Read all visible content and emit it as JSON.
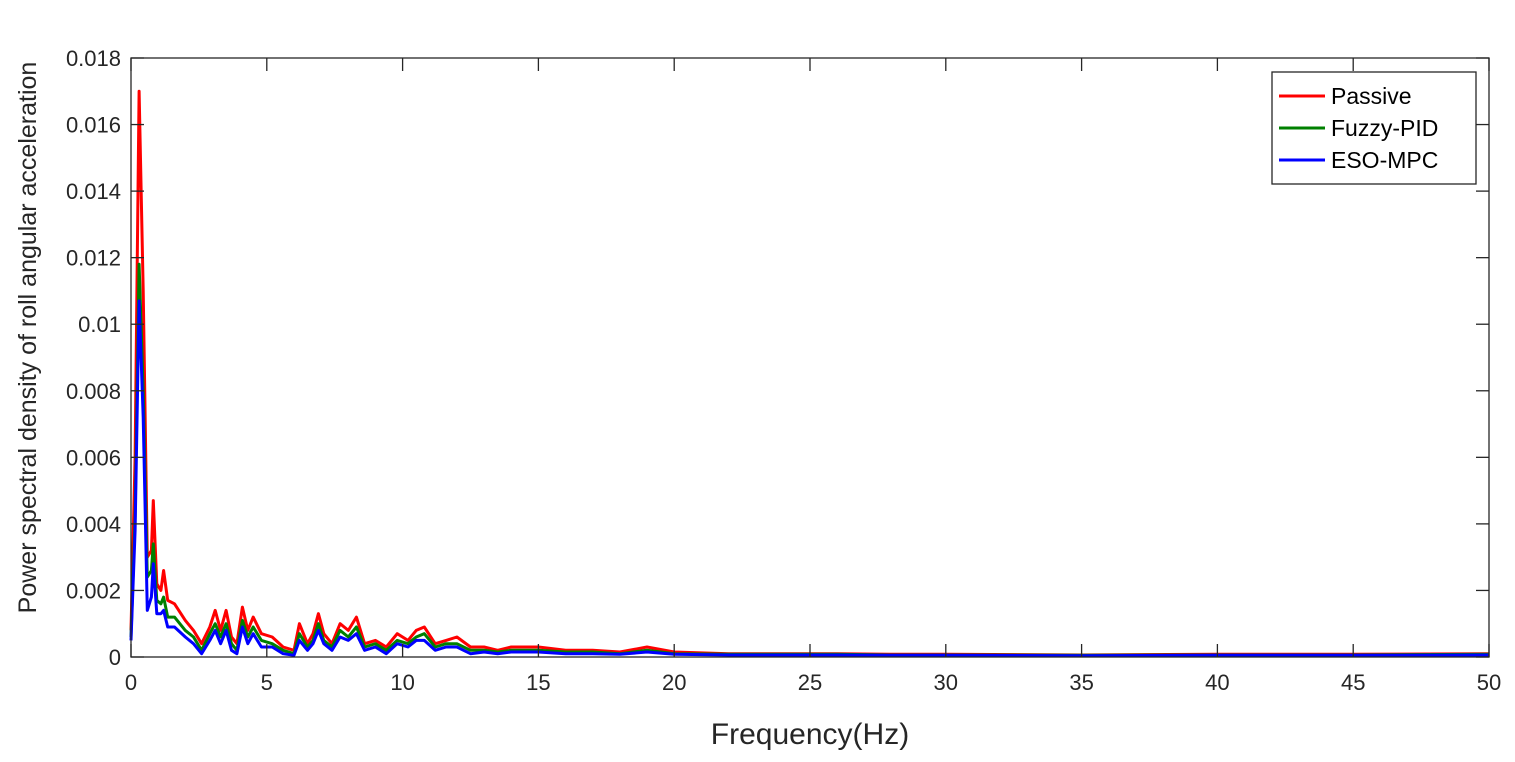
{
  "chart_data": {
    "type": "line",
    "title": "",
    "xlabel": "Frequency(Hz)",
    "ylabel": "Power spectral density of roll angular acceleration",
    "xlim": [
      0,
      50
    ],
    "ylim": [
      0,
      0.018
    ],
    "x_ticks": [
      "0",
      "5",
      "10",
      "15",
      "20",
      "25",
      "30",
      "35",
      "40",
      "45",
      "50"
    ],
    "y_ticks": [
      "0",
      "0.002",
      "0.004",
      "0.006",
      "0.008",
      "0.01",
      "0.012",
      "0.014",
      "0.016",
      "0.018"
    ],
    "grid": false,
    "legend_position": "top-right",
    "series": [
      {
        "name": "Passive",
        "color": "#ff0000",
        "points": [
          [
            0,
            0.0008
          ],
          [
            0.15,
            0.006
          ],
          [
            0.3,
            0.017
          ],
          [
            0.45,
            0.011
          ],
          [
            0.6,
            0.003
          ],
          [
            0.75,
            0.0032
          ],
          [
            0.82,
            0.0047
          ],
          [
            0.95,
            0.0022
          ],
          [
            1.1,
            0.002
          ],
          [
            1.2,
            0.0026
          ],
          [
            1.35,
            0.0017
          ],
          [
            1.6,
            0.0016
          ],
          [
            2,
            0.0011
          ],
          [
            2.3,
            0.0008
          ],
          [
            2.6,
            0.0004
          ],
          [
            2.9,
            0.0009
          ],
          [
            3.1,
            0.0014
          ],
          [
            3.3,
            0.0008
          ],
          [
            3.5,
            0.0014
          ],
          [
            3.7,
            0.0006
          ],
          [
            3.9,
            0.0004
          ],
          [
            4.1,
            0.0015
          ],
          [
            4.3,
            0.0008
          ],
          [
            4.5,
            0.0012
          ],
          [
            4.8,
            0.0007
          ],
          [
            5.2,
            0.0006
          ],
          [
            5.6,
            0.0003
          ],
          [
            6,
            0.0002
          ],
          [
            6.2,
            0.001
          ],
          [
            6.5,
            0.0004
          ],
          [
            6.7,
            0.0007
          ],
          [
            6.9,
            0.0013
          ],
          [
            7.1,
            0.0007
          ],
          [
            7.4,
            0.0004
          ],
          [
            7.7,
            0.001
          ],
          [
            8,
            0.0008
          ],
          [
            8.3,
            0.0012
          ],
          [
            8.6,
            0.0004
          ],
          [
            9,
            0.0005
          ],
          [
            9.4,
            0.0003
          ],
          [
            9.8,
            0.0007
          ],
          [
            10.2,
            0.0005
          ],
          [
            10.5,
            0.0008
          ],
          [
            10.8,
            0.0009
          ],
          [
            11.2,
            0.0004
          ],
          [
            11.6,
            0.0005
          ],
          [
            12,
            0.0006
          ],
          [
            12.5,
            0.0003
          ],
          [
            13,
            0.0003
          ],
          [
            13.5,
            0.0002
          ],
          [
            14,
            0.0003
          ],
          [
            14.5,
            0.0003
          ],
          [
            15,
            0.0003
          ],
          [
            16,
            0.0002
          ],
          [
            17,
            0.0002
          ],
          [
            18,
            0.00015
          ],
          [
            19,
            0.0003
          ],
          [
            20,
            0.00015
          ],
          [
            22,
            0.0001
          ],
          [
            24,
            0.0001
          ],
          [
            26,
            0.0001
          ],
          [
            28,
            8e-05
          ],
          [
            30,
            8e-05
          ],
          [
            35,
            6e-05
          ],
          [
            40,
            8e-05
          ],
          [
            45,
            8e-05
          ],
          [
            50,
            0.0001
          ]
        ]
      },
      {
        "name": "Fuzzy-PID",
        "color": "#008000",
        "points": [
          [
            0,
            0.0006
          ],
          [
            0.15,
            0.0042
          ],
          [
            0.3,
            0.0118
          ],
          [
            0.45,
            0.008
          ],
          [
            0.6,
            0.0024
          ],
          [
            0.75,
            0.0026
          ],
          [
            0.82,
            0.0034
          ],
          [
            0.95,
            0.0017
          ],
          [
            1.1,
            0.0016
          ],
          [
            1.2,
            0.0018
          ],
          [
            1.35,
            0.0012
          ],
          [
            1.6,
            0.0012
          ],
          [
            2,
            0.0008
          ],
          [
            2.3,
            0.0006
          ],
          [
            2.6,
            0.0002
          ],
          [
            2.9,
            0.0007
          ],
          [
            3.1,
            0.001
          ],
          [
            3.3,
            0.0006
          ],
          [
            3.5,
            0.001
          ],
          [
            3.7,
            0.0004
          ],
          [
            3.9,
            0.0002
          ],
          [
            4.1,
            0.0011
          ],
          [
            4.3,
            0.0006
          ],
          [
            4.5,
            0.0009
          ],
          [
            4.8,
            0.0005
          ],
          [
            5.2,
            0.0004
          ],
          [
            5.6,
            0.0002
          ],
          [
            6,
            0.0001
          ],
          [
            6.2,
            0.0007
          ],
          [
            6.5,
            0.0003
          ],
          [
            6.7,
            0.0005
          ],
          [
            6.9,
            0.001
          ],
          [
            7.1,
            0.0005
          ],
          [
            7.4,
            0.0003
          ],
          [
            7.7,
            0.0008
          ],
          [
            8,
            0.0006
          ],
          [
            8.3,
            0.0009
          ],
          [
            8.6,
            0.0003
          ],
          [
            9,
            0.0004
          ],
          [
            9.4,
            0.0002
          ],
          [
            9.8,
            0.0005
          ],
          [
            10.2,
            0.0004
          ],
          [
            10.5,
            0.0006
          ],
          [
            10.8,
            0.0007
          ],
          [
            11.2,
            0.0003
          ],
          [
            11.6,
            0.0004
          ],
          [
            12,
            0.0004
          ],
          [
            12.5,
            0.0002
          ],
          [
            13,
            0.0002
          ],
          [
            13.5,
            0.00015
          ],
          [
            14,
            0.0002
          ],
          [
            14.5,
            0.0002
          ],
          [
            15,
            0.0002
          ],
          [
            16,
            0.00015
          ],
          [
            17,
            0.00015
          ],
          [
            18,
            0.0001
          ],
          [
            19,
            0.0002
          ],
          [
            20,
            0.0001
          ],
          [
            22,
            8e-05
          ],
          [
            24,
            8e-05
          ],
          [
            26,
            8e-05
          ],
          [
            28,
            6e-05
          ],
          [
            30,
            6e-05
          ],
          [
            35,
            5e-05
          ],
          [
            40,
            6e-05
          ],
          [
            45,
            6e-05
          ],
          [
            50,
            8e-05
          ]
        ]
      },
      {
        "name": "ESO-MPC",
        "color": "#0000ff",
        "points": [
          [
            0,
            0.0005
          ],
          [
            0.15,
            0.0038
          ],
          [
            0.3,
            0.0107
          ],
          [
            0.45,
            0.0072
          ],
          [
            0.6,
            0.0014
          ],
          [
            0.75,
            0.0018
          ],
          [
            0.82,
            0.0028
          ],
          [
            0.95,
            0.0013
          ],
          [
            1.1,
            0.0013
          ],
          [
            1.2,
            0.0014
          ],
          [
            1.35,
            0.0009
          ],
          [
            1.6,
            0.0009
          ],
          [
            2,
            0.0006
          ],
          [
            2.3,
            0.0004
          ],
          [
            2.6,
            0.0001
          ],
          [
            2.9,
            0.0005
          ],
          [
            3.1,
            0.0008
          ],
          [
            3.3,
            0.0004
          ],
          [
            3.5,
            0.0008
          ],
          [
            3.7,
            0.0002
          ],
          [
            3.9,
            0.0001
          ],
          [
            4.1,
            0.0009
          ],
          [
            4.3,
            0.0004
          ],
          [
            4.5,
            0.0007
          ],
          [
            4.8,
            0.0003
          ],
          [
            5.2,
            0.0003
          ],
          [
            5.6,
            0.0001
          ],
          [
            6,
            5e-05
          ],
          [
            6.2,
            0.0005
          ],
          [
            6.5,
            0.0002
          ],
          [
            6.7,
            0.0004
          ],
          [
            6.9,
            0.0008
          ],
          [
            7.1,
            0.0004
          ],
          [
            7.4,
            0.0002
          ],
          [
            7.7,
            0.0006
          ],
          [
            8,
            0.0005
          ],
          [
            8.3,
            0.0007
          ],
          [
            8.6,
            0.0002
          ],
          [
            9,
            0.0003
          ],
          [
            9.4,
            0.0001
          ],
          [
            9.8,
            0.0004
          ],
          [
            10.2,
            0.0003
          ],
          [
            10.5,
            0.0005
          ],
          [
            10.8,
            0.0005
          ],
          [
            11.2,
            0.0002
          ],
          [
            11.6,
            0.0003
          ],
          [
            12,
            0.0003
          ],
          [
            12.5,
            0.0001
          ],
          [
            13,
            0.00015
          ],
          [
            13.5,
            0.0001
          ],
          [
            14,
            0.00015
          ],
          [
            14.5,
            0.00015
          ],
          [
            15,
            0.00015
          ],
          [
            16,
            0.0001
          ],
          [
            17,
            0.0001
          ],
          [
            18,
            8e-05
          ],
          [
            19,
            0.00015
          ],
          [
            20,
            8e-05
          ],
          [
            22,
            6e-05
          ],
          [
            24,
            6e-05
          ],
          [
            26,
            6e-05
          ],
          [
            28,
            5e-05
          ],
          [
            30,
            5e-05
          ],
          [
            35,
            4e-05
          ],
          [
            40,
            5e-05
          ],
          [
            45,
            5e-05
          ],
          [
            50,
            6e-05
          ]
        ]
      }
    ]
  }
}
